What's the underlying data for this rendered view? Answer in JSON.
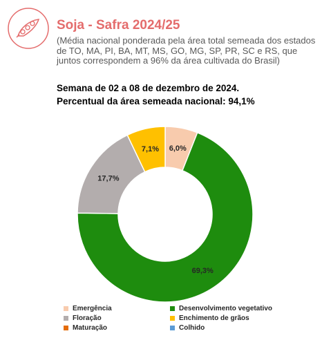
{
  "header": {
    "title": "Soja - Safra 2024/25",
    "note": "(Média nacional ponderada pela área total semeada dos estados de TO, MA, PI, BA, MT, MS, GO, MG, SP, PR, SC e RS, que juntos correspondem a 96% da área cultivada do Brasil)",
    "week": "Semana de 02 a 08 de dezembro de 2024.",
    "planted_pct": "Percentual da área semeada nacional: 94,1%"
  },
  "logo": {
    "icon": "soybean-pod-icon",
    "color": "#e46c6c"
  },
  "chart_data": {
    "type": "donut",
    "unit": "%",
    "slices": [
      {
        "name": "Emergência",
        "value": 6.0,
        "label": "6,0%",
        "color": "#f8cbad"
      },
      {
        "name": "Desenvolvimento vegetativo",
        "value": 69.3,
        "label": "69,3%",
        "color": "#1e8c0e"
      },
      {
        "name": "Floração",
        "value": 17.7,
        "label": "17,7%",
        "color": "#b3adad"
      },
      {
        "name": "Enchimento de grãos",
        "value": 7.1,
        "label": "7,1%",
        "color": "#ffc000"
      },
      {
        "name": "Maturação",
        "value": 0,
        "label": "",
        "color": "#e46c0a"
      },
      {
        "name": "Colhido",
        "value": 0,
        "label": "",
        "color": "#5b9bd5"
      }
    ],
    "legend": [
      "Emergência",
      "Desenvolvimento vegetativo",
      "Floração",
      "Enchimento de grãos",
      "Maturação",
      "Colhido"
    ]
  }
}
